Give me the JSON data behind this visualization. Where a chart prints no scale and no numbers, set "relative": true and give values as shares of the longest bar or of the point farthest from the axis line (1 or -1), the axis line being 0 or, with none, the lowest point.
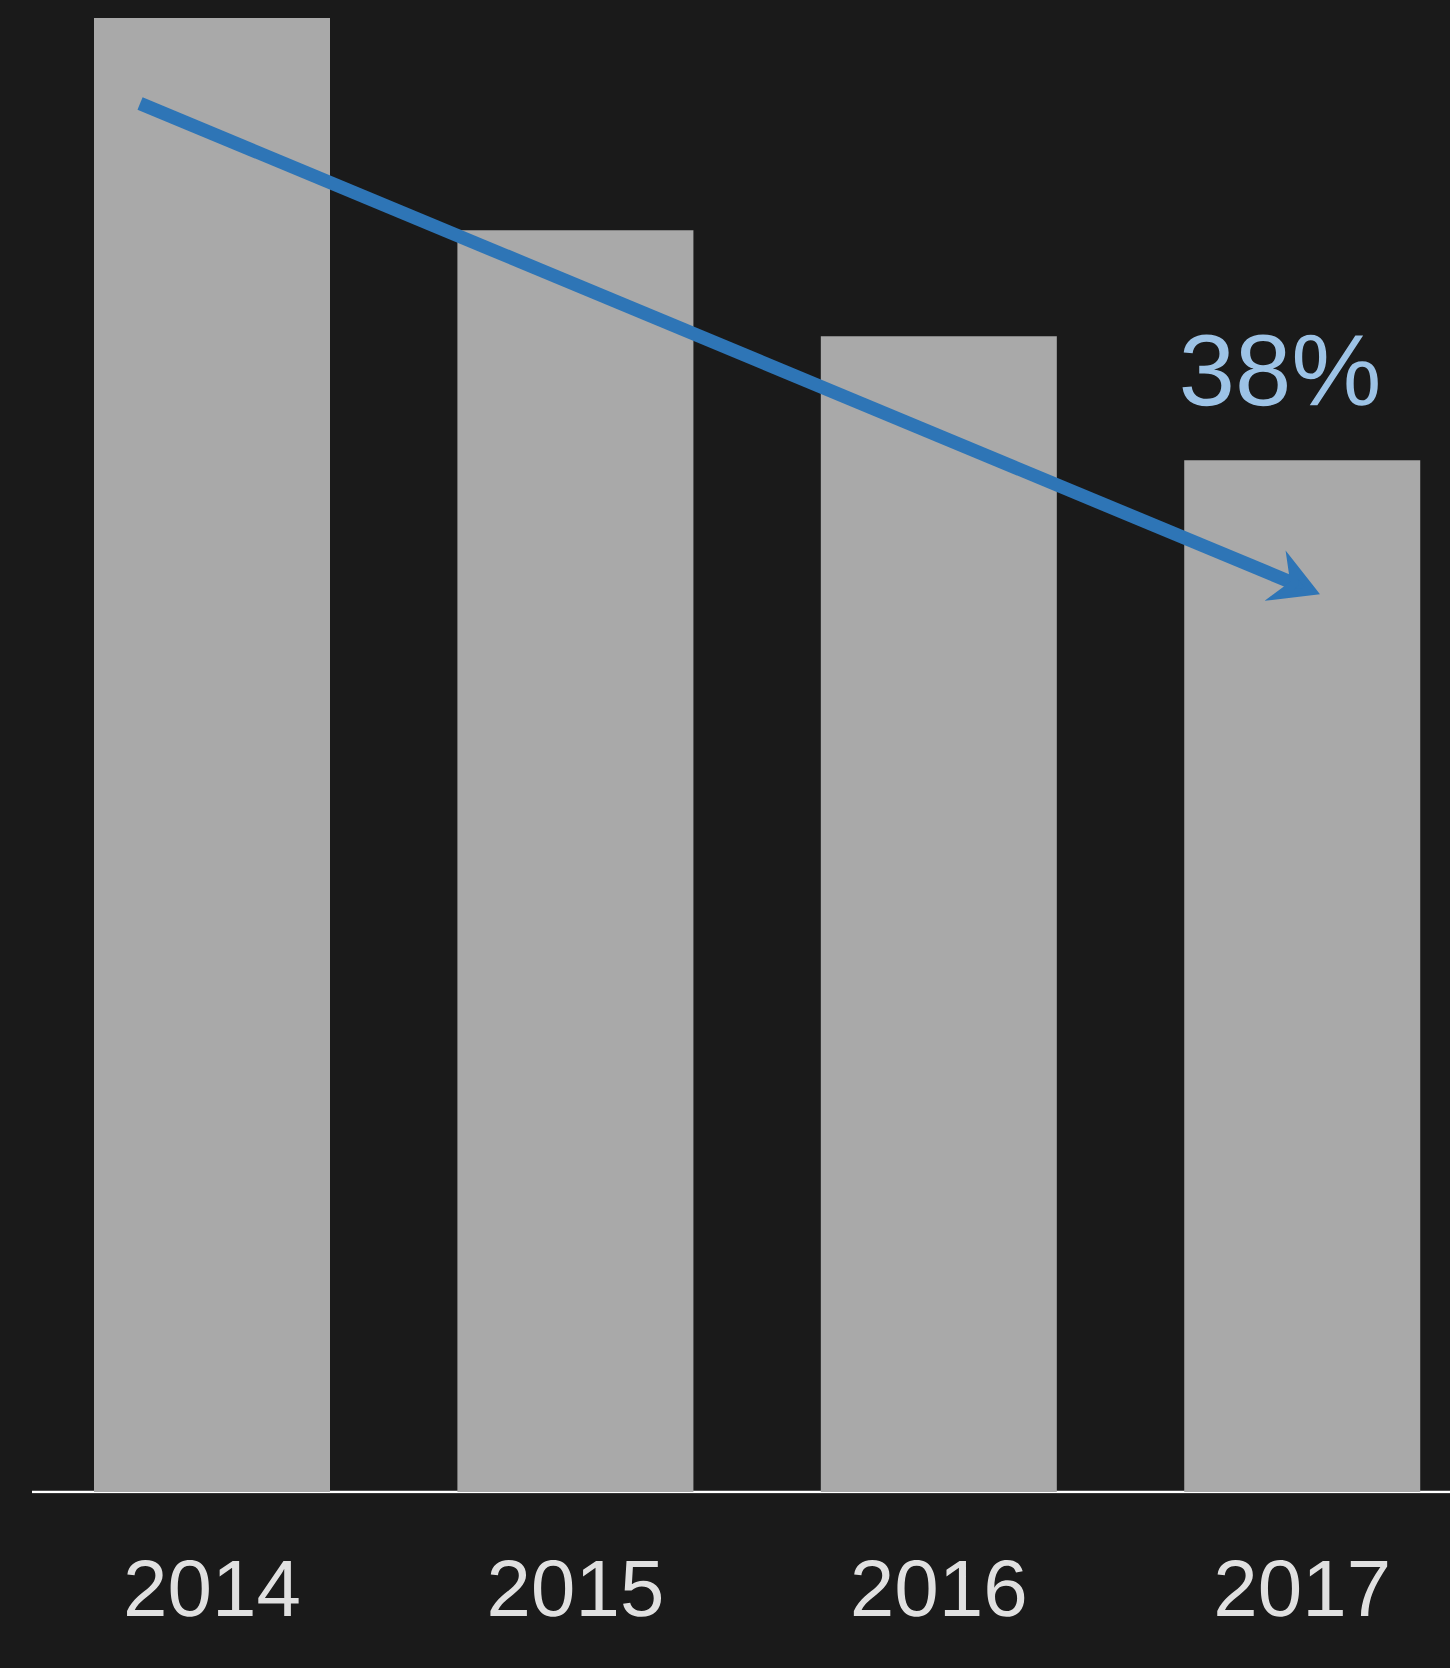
{
  "chart_data": {
    "type": "bar",
    "relative": true,
    "categories": [
      "2014",
      "2015",
      "2016",
      "2017"
    ],
    "values": [
      1,
      0.856,
      0.784,
      0.7
    ],
    "color": "#a9a9a9",
    "annotations": [
      "38%"
    ]
  }
}
